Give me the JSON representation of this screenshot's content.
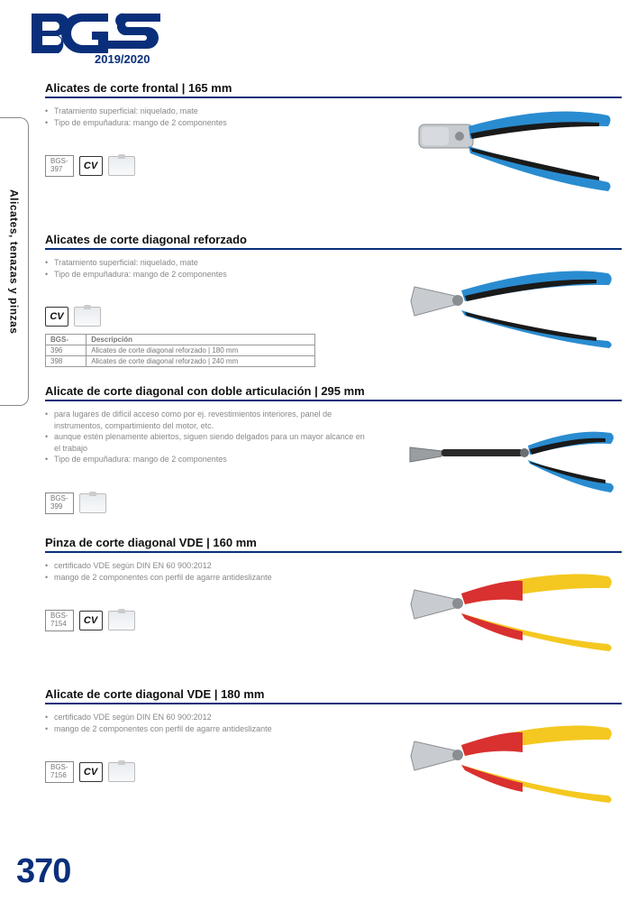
{
  "logo": {
    "year": "2019/2020"
  },
  "side_tab": "Alicates, tenazas y pinzas",
  "page_number": "370",
  "colors": {
    "brand": "#0a2f7a",
    "text_muted": "#888888",
    "handle_blue": "#2a8cd0",
    "handle_black": "#1a1a1a",
    "metal": "#bfc3c7",
    "vde_red": "#d93030",
    "vde_yellow": "#f4c820"
  },
  "products": [
    {
      "title": "Alicates de corte frontal | 165 mm",
      "bullets": [
        "Tratamiento superficial: niquelado, mate",
        "Tipo de empuñadura: mango de 2 componentes"
      ],
      "code_prefix": "BGS-",
      "code": "397",
      "show_cv": true,
      "show_badge": true,
      "image": "pliers_frontal_blue"
    },
    {
      "title": "Alicates de corte diagonal reforzado",
      "bullets": [
        "Tratamiento superficial: niquelado, mate",
        "Tipo de empuñadura: mango de 2 componentes"
      ],
      "show_cv": true,
      "show_badge": true,
      "table": {
        "headers": [
          "BGS-",
          "Descripción"
        ],
        "rows": [
          [
            "396",
            "Alicates de corte diagonal reforzado | 180 mm"
          ],
          [
            "398",
            "Alicates de corte diagonal reforzado | 240 mm"
          ]
        ]
      },
      "image": "pliers_diagonal_blue"
    },
    {
      "title": "Alicate de corte diagonal con doble articulación | 295 mm",
      "bullets": [
        "para lugares de difícil acceso como por ej. revestimientos interiores, panel de instrumentos, compartimiento del motor, etc.",
        "aunque estén plenamente abiertos, siguen siendo delgados para un mayor alcance en el trabajo",
        "Tipo de empuñadura: mango de 2 componentes"
      ],
      "code_prefix": "BGS-",
      "code": "399",
      "show_cv": false,
      "show_badge": true,
      "image": "pliers_long_blue"
    },
    {
      "title": "Pinza de corte diagonal VDE | 160 mm",
      "bullets": [
        "certificado VDE según DIN EN 60 900:2012",
        "mango de 2 componentes con perfil de agarre antideslizante"
      ],
      "code_prefix": "BGS-",
      "code": "7154",
      "show_cv": true,
      "show_badge": true,
      "image": "pliers_vde"
    },
    {
      "title": "Alicate de corte diagonal VDE | 180 mm",
      "bullets": [
        "certificado VDE según DIN EN 60 900:2012",
        "mango de 2 componentes con perfil de agarre antideslizante"
      ],
      "code_prefix": "BGS-",
      "code": "7156",
      "show_cv": true,
      "show_badge": true,
      "image": "pliers_vde"
    }
  ]
}
